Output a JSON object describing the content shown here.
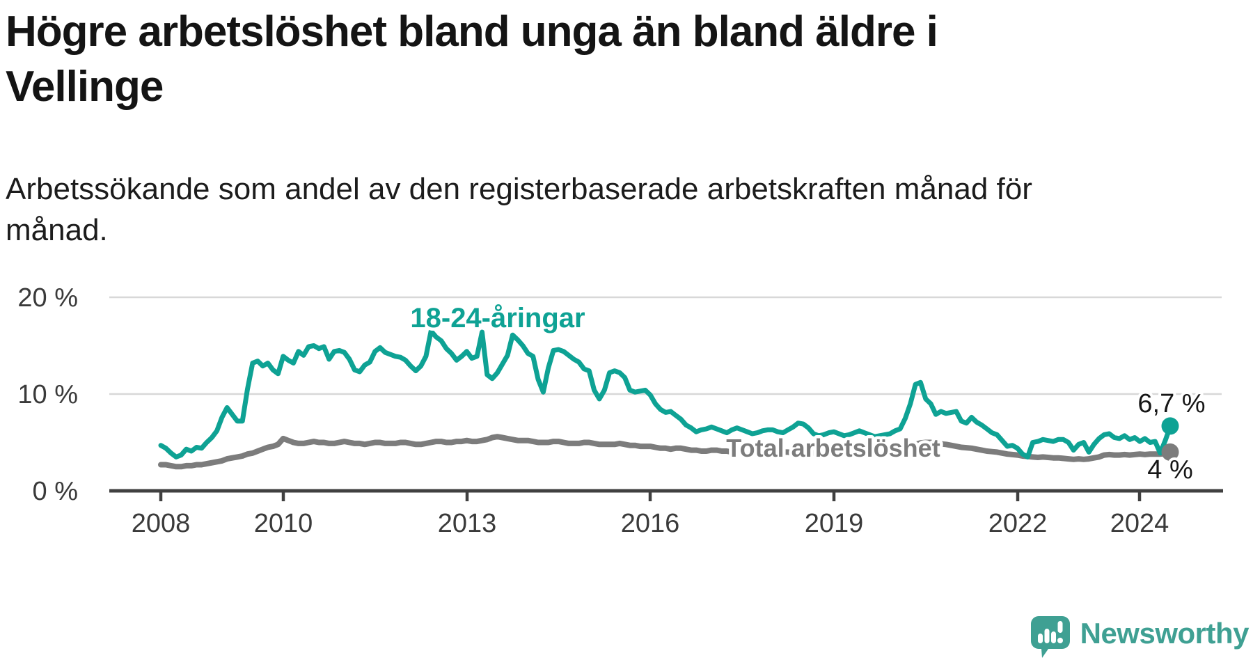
{
  "title_lines": [
    "Högre arbetslöshet bland unga än bland äldre i",
    "Vellinge"
  ],
  "subtitle_lines": [
    "Arbetssökande som andel av den registerbaserade arbetskraften månad för",
    "månad."
  ],
  "colors": {
    "youth_line": "#0ea294",
    "total_line": "#7c7c7c",
    "grid": "#d8d8d8",
    "axis": "#404040",
    "end_label_text": "#161616",
    "logo_teal": "#3fa093"
  },
  "chart_data": {
    "type": "line",
    "title": "Högre arbetslöshet bland unga än bland äldre i Vellinge",
    "xlabel": "",
    "ylabel": "Arbetssökande som andel av den registerbaserade arbetskraften",
    "unit": "%",
    "x_start_year": 2008,
    "x_step_months": 1,
    "x_end": "2024-07",
    "ylim": [
      0,
      21.5
    ],
    "grid": "horizontal",
    "y_ticks": [
      {
        "value": 0,
        "label": "0 %"
      },
      {
        "value": 10,
        "label": "10 %"
      },
      {
        "value": 20,
        "label": "20 %"
      }
    ],
    "x_ticks": [
      {
        "year": 2008,
        "label": "2008"
      },
      {
        "year": 2010,
        "label": "2010"
      },
      {
        "year": 2013,
        "label": "2013"
      },
      {
        "year": 2016,
        "label": "2016"
      },
      {
        "year": 2019,
        "label": "2019"
      },
      {
        "year": 2022,
        "label": "2022"
      },
      {
        "year": 2024,
        "label": "2024"
      }
    ],
    "series": [
      {
        "name": "18-24-åringar",
        "label": "18-24-åringar",
        "end_label": "6,7 %",
        "end_value": 6.7,
        "color": "#0ea294",
        "values": [
          4.7,
          4.4,
          3.9,
          3.5,
          3.7,
          4.3,
          4.1,
          4.5,
          4.4,
          5.0,
          5.5,
          6.2,
          7.6,
          8.6,
          7.9,
          7.2,
          7.2,
          10.5,
          13.2,
          13.4,
          12.9,
          13.2,
          12.5,
          12.1,
          13.9,
          13.5,
          13.2,
          14.4,
          14.0,
          14.9,
          15.0,
          14.7,
          14.9,
          13.6,
          14.4,
          14.5,
          14.3,
          13.6,
          12.5,
          12.3,
          13.0,
          13.3,
          14.4,
          14.8,
          14.3,
          14.1,
          13.9,
          13.8,
          13.5,
          12.9,
          12.4,
          12.9,
          13.9,
          16.5,
          15.9,
          15.5,
          14.7,
          14.2,
          13.5,
          13.9,
          14.4,
          13.7,
          13.9,
          16.4,
          12.0,
          11.6,
          12.2,
          13.1,
          14.0,
          16.1,
          15.6,
          15.0,
          14.2,
          13.9,
          11.5,
          10.2,
          12.7,
          14.5,
          14.6,
          14.4,
          14.0,
          13.6,
          13.3,
          12.6,
          12.4,
          10.4,
          9.5,
          10.4,
          12.2,
          12.4,
          12.2,
          11.7,
          10.4,
          10.2,
          10.3,
          10.4,
          9.9,
          9.0,
          8.4,
          8.1,
          8.2,
          7.8,
          7.4,
          6.8,
          6.5,
          6.1,
          6.3,
          6.4,
          6.6,
          6.4,
          6.2,
          6.0,
          6.3,
          6.5,
          6.3,
          6.1,
          5.9,
          6.0,
          6.2,
          6.3,
          6.3,
          6.1,
          6.0,
          6.3,
          6.6,
          7.0,
          6.9,
          6.5,
          5.9,
          5.7,
          5.8,
          6.0,
          6.1,
          5.9,
          5.7,
          5.8,
          6.0,
          6.2,
          6.0,
          5.8,
          5.6,
          5.7,
          5.8,
          5.9,
          6.2,
          6.4,
          7.5,
          9.0,
          11.0,
          11.2,
          9.5,
          9.0,
          7.9,
          8.2,
          8.0,
          8.1,
          8.2,
          7.2,
          7.0,
          7.6,
          7.1,
          6.8,
          6.4,
          6.0,
          5.8,
          5.2,
          4.6,
          4.7,
          4.4,
          3.8,
          3.5,
          5.0,
          5.1,
          5.3,
          5.2,
          5.1,
          5.3,
          5.3,
          5.0,
          4.2,
          4.8,
          5.0,
          4.0,
          4.8,
          5.4,
          5.8,
          5.9,
          5.5,
          5.4,
          5.7,
          5.3,
          5.5,
          5.1,
          5.4,
          5.0,
          5.1,
          3.9,
          5.2,
          6.7
        ]
      },
      {
        "name": "Total arbetslöshet",
        "label": "Total arbetslöshet",
        "end_label": "4 %",
        "end_value": 4.0,
        "color": "#7c7c7c",
        "values": [
          2.7,
          2.7,
          2.6,
          2.5,
          2.5,
          2.6,
          2.6,
          2.7,
          2.7,
          2.8,
          2.9,
          3.0,
          3.1,
          3.3,
          3.4,
          3.5,
          3.6,
          3.8,
          3.9,
          4.1,
          4.3,
          4.5,
          4.6,
          4.8,
          5.4,
          5.2,
          5.0,
          4.9,
          4.9,
          5.0,
          5.1,
          5.0,
          5.0,
          4.9,
          4.9,
          5.0,
          5.1,
          5.0,
          4.9,
          4.9,
          4.8,
          4.9,
          5.0,
          5.0,
          4.9,
          4.9,
          4.9,
          5.0,
          5.0,
          4.9,
          4.8,
          4.8,
          4.9,
          5.0,
          5.1,
          5.1,
          5.0,
          5.0,
          5.1,
          5.1,
          5.2,
          5.1,
          5.1,
          5.2,
          5.3,
          5.5,
          5.6,
          5.5,
          5.4,
          5.3,
          5.2,
          5.2,
          5.2,
          5.1,
          5.0,
          5.0,
          5.0,
          5.1,
          5.1,
          5.0,
          4.9,
          4.9,
          4.9,
          5.0,
          5.0,
          4.9,
          4.8,
          4.8,
          4.8,
          4.8,
          4.9,
          4.8,
          4.7,
          4.7,
          4.6,
          4.6,
          4.6,
          4.5,
          4.4,
          4.4,
          4.3,
          4.4,
          4.4,
          4.3,
          4.2,
          4.2,
          4.1,
          4.1,
          4.2,
          4.2,
          4.1,
          4.1,
          4.0,
          4.1,
          4.2,
          4.1,
          4.0,
          4.0,
          4.0,
          4.1,
          4.1,
          4.1,
          4.0,
          4.0,
          3.9,
          4.0,
          4.1,
          4.0,
          3.9,
          3.8,
          3.8,
          3.9,
          3.9,
          3.9,
          3.8,
          3.8,
          3.8,
          3.9,
          4.0,
          4.0,
          3.9,
          3.9,
          3.9,
          4.0,
          4.0,
          4.05,
          4.2,
          4.6,
          4.8,
          4.95,
          5.0,
          5.0,
          4.9,
          4.85,
          4.8,
          4.7,
          4.6,
          4.5,
          4.45,
          4.4,
          4.3,
          4.2,
          4.1,
          4.05,
          4.0,
          3.9,
          3.8,
          3.75,
          3.7,
          3.6,
          3.55,
          3.5,
          3.45,
          3.5,
          3.45,
          3.4,
          3.4,
          3.35,
          3.3,
          3.25,
          3.3,
          3.25,
          3.3,
          3.4,
          3.5,
          3.7,
          3.75,
          3.7,
          3.7,
          3.75,
          3.7,
          3.75,
          3.8,
          3.75,
          3.8,
          3.8,
          3.8,
          3.85,
          4.0
        ]
      }
    ]
  },
  "logo": {
    "text": "Newsworthy",
    "icon": "newsworthy-speech-bubble-bar-chart-icon"
  }
}
